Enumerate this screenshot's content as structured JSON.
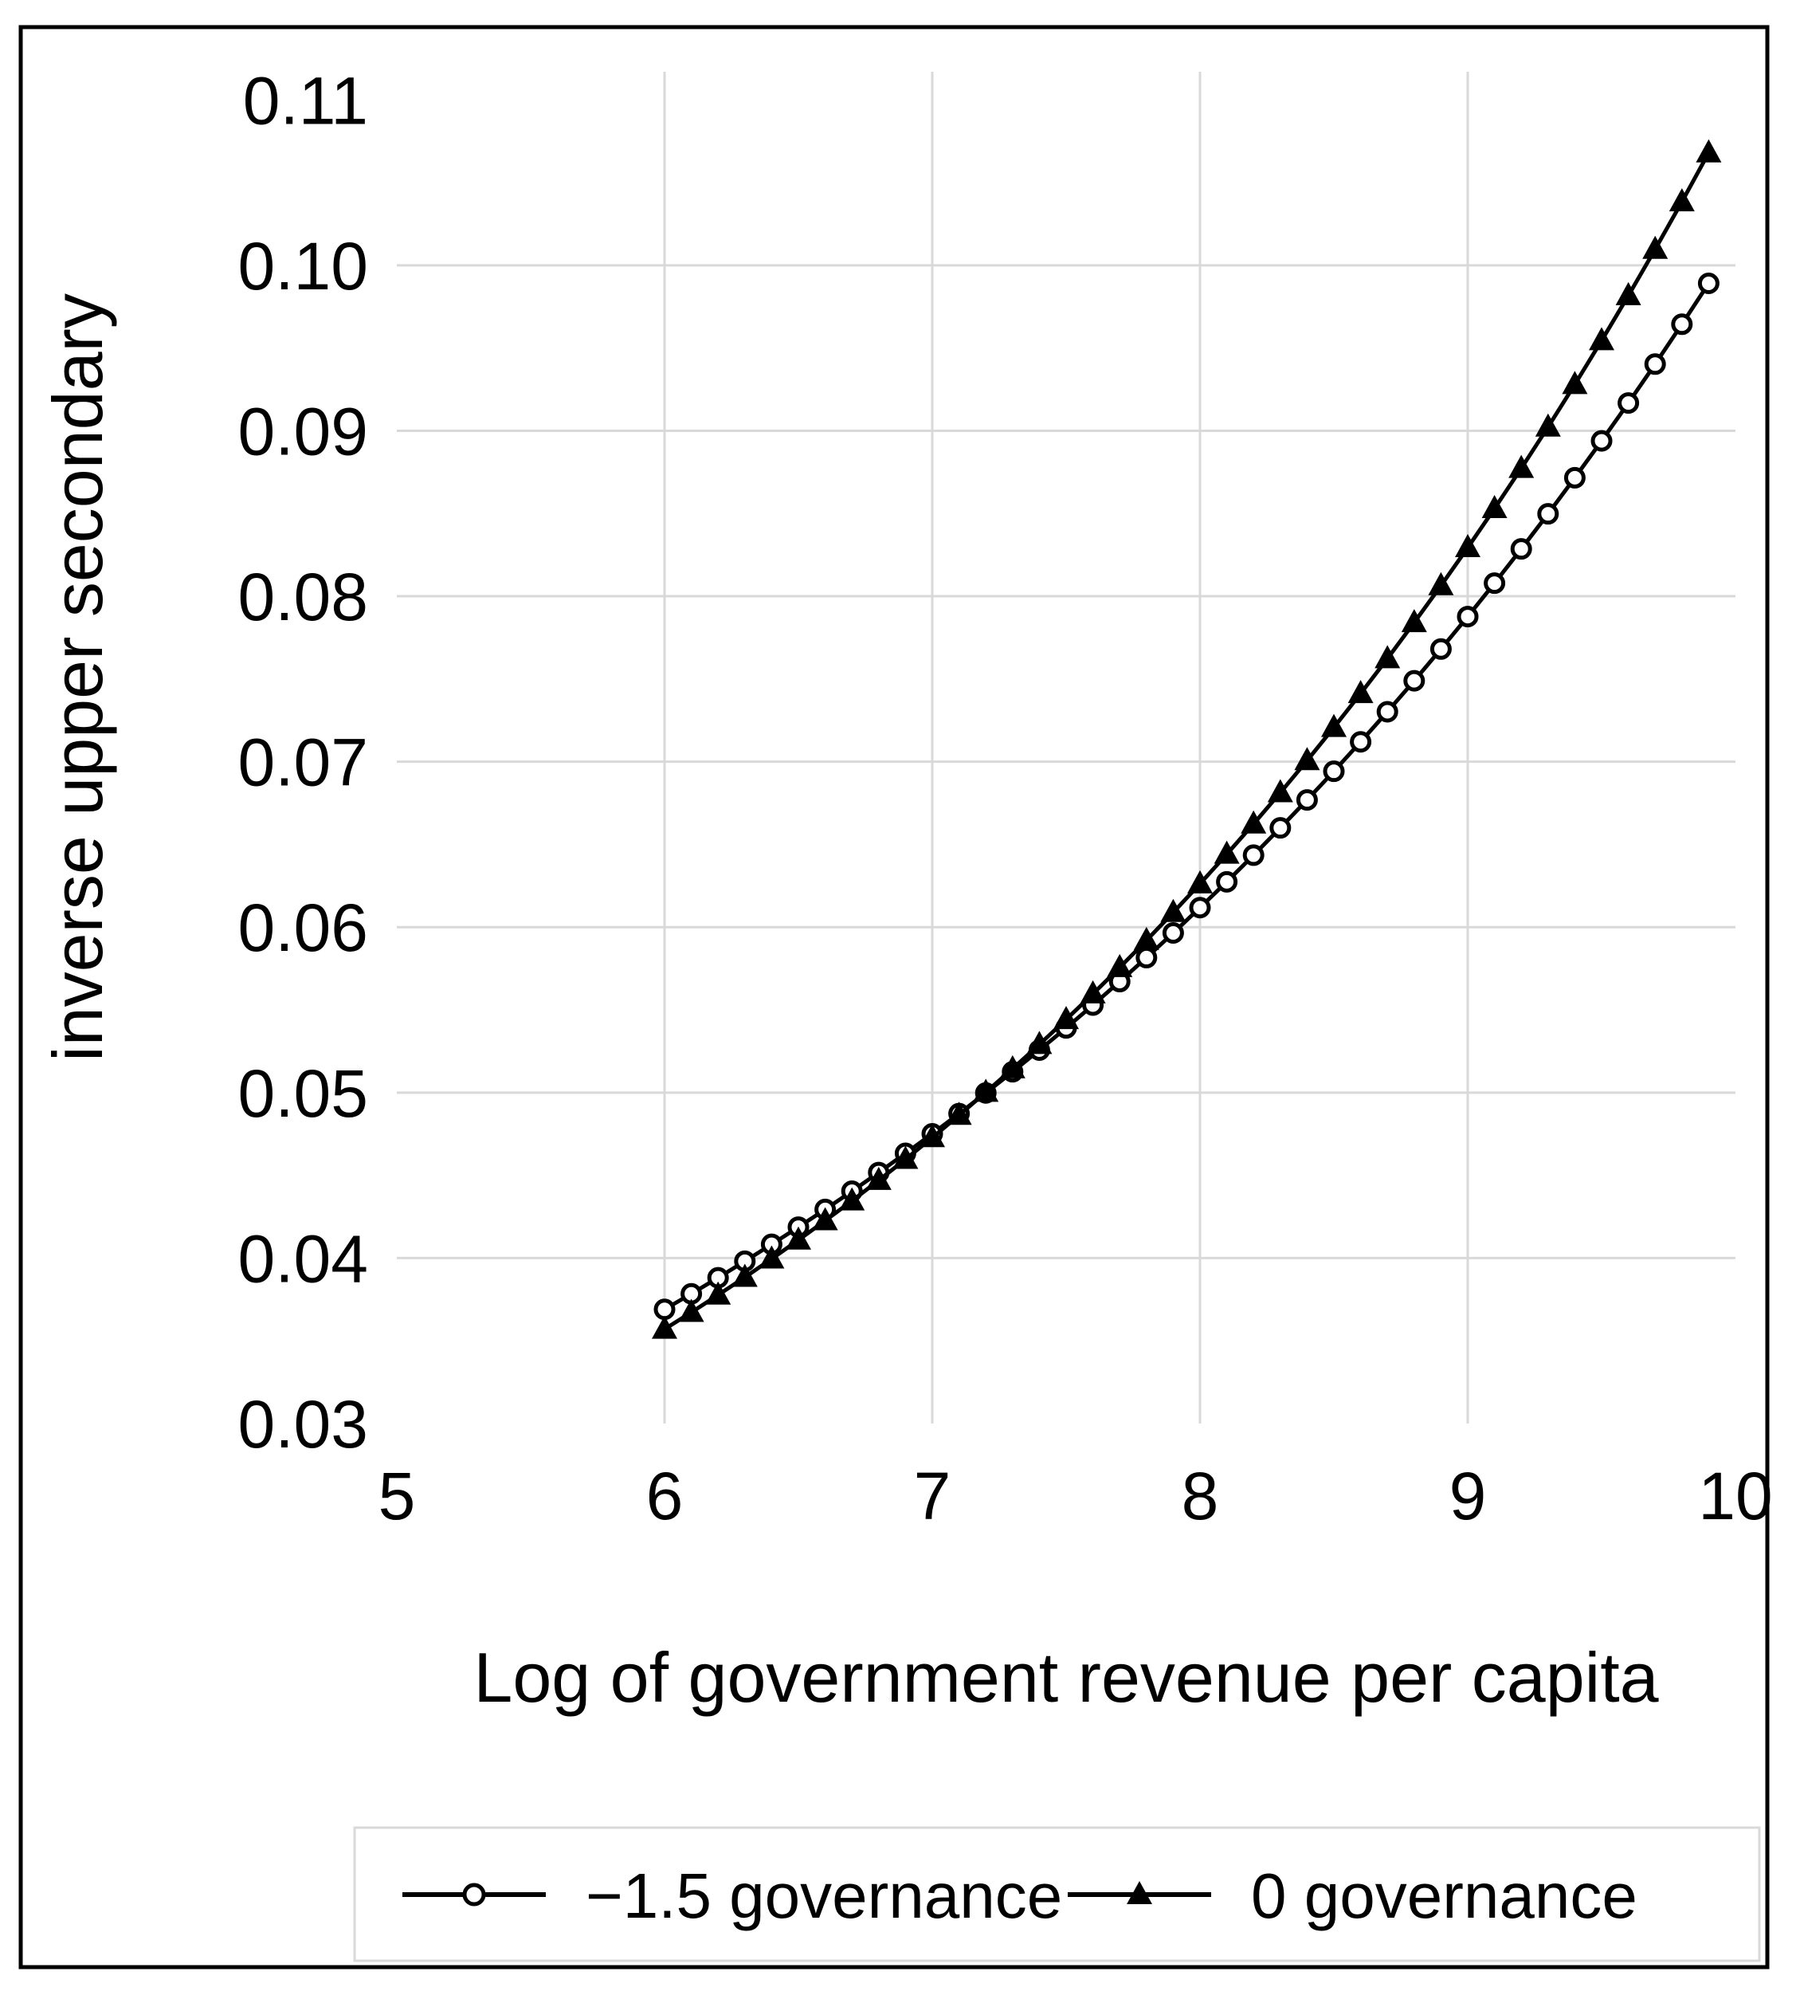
{
  "figure": {
    "background": "#ffffff",
    "frame_color": "#000000"
  },
  "chart_data": {
    "type": "line",
    "title": "",
    "xlabel": "Log of government revenue per capita",
    "ylabel": "inverse upper secondary",
    "xlim": [
      5,
      10
    ],
    "ylim": [
      0.03,
      0.1117
    ],
    "grid": true,
    "legend_position": "bottom",
    "x": [
      6.0,
      6.1,
      6.2,
      6.3,
      6.4,
      6.5,
      6.6,
      6.7,
      6.8,
      6.9,
      7.0,
      7.1,
      7.2,
      7.3,
      7.4,
      7.5,
      7.6,
      7.7,
      7.8,
      7.9,
      8.0,
      8.1,
      8.2,
      8.3,
      8.4,
      8.5,
      8.6,
      8.7,
      8.8,
      8.9,
      9.0,
      9.1,
      9.2,
      9.3,
      9.4,
      9.5,
      9.6,
      9.7,
      9.8,
      9.9
    ],
    "series": [
      {
        "name": "−1.5 governance",
        "marker": "open-circle",
        "color": "#000000",
        "values": [
          0.0369,
          0.03784,
          0.03881,
          0.03981,
          0.04083,
          0.04187,
          0.04294,
          0.04404,
          0.04517,
          0.04633,
          0.04751,
          0.04873,
          0.04998,
          0.05126,
          0.05257,
          0.05391,
          0.05529,
          0.05671,
          0.05816,
          0.05965,
          0.06118,
          0.06274,
          0.06435,
          0.066,
          0.06769,
          0.06942,
          0.0712,
          0.07302,
          0.07489,
          0.07681,
          0.07877,
          0.08079,
          0.08286,
          0.08498,
          0.08716,
          0.08939,
          0.09168,
          0.09403,
          0.09644,
          0.09891
        ]
      },
      {
        "name": "0 governance",
        "marker": "filled-triangle",
        "color": "#000000",
        "values": [
          0.0357,
          0.03672,
          0.03777,
          0.03884,
          0.03995,
          0.04109,
          0.04226,
          0.04346,
          0.0447,
          0.04597,
          0.04728,
          0.04863,
          0.05002,
          0.05144,
          0.05291,
          0.05442,
          0.05597,
          0.05756,
          0.0592,
          0.06089,
          0.06262,
          0.06441,
          0.06624,
          0.06813,
          0.07007,
          0.07207,
          0.07412,
          0.07623,
          0.07841,
          0.08064,
          0.08294,
          0.0853,
          0.08773,
          0.09023,
          0.0928,
          0.09545,
          0.09817,
          0.10097,
          0.10384,
          0.1068
        ]
      }
    ],
    "xticks": [
      {
        "value": 5,
        "label": "5"
      },
      {
        "value": 6,
        "label": "6"
      },
      {
        "value": 7,
        "label": "7"
      },
      {
        "value": 8,
        "label": "8"
      },
      {
        "value": 9,
        "label": "9"
      },
      {
        "value": 10,
        "label": "10"
      }
    ],
    "yticks": [
      {
        "value": 0.11,
        "label": "0.11"
      },
      {
        "value": 0.1,
        "label": "0.10"
      },
      {
        "value": 0.09,
        "label": "0.09"
      },
      {
        "value": 0.08,
        "label": "0.08"
      },
      {
        "value": 0.07,
        "label": "0.07"
      },
      {
        "value": 0.06,
        "label": "0.06"
      },
      {
        "value": 0.05,
        "label": "0.05"
      },
      {
        "value": 0.04,
        "label": "0.04"
      },
      {
        "value": 0.03,
        "label": "0.03"
      }
    ],
    "gridlines": {
      "x_values": [
        6,
        7,
        8,
        9
      ],
      "y_values": [
        0.04,
        0.05,
        0.06,
        0.07,
        0.08,
        0.09,
        0.1
      ]
    }
  },
  "legend": {
    "items": [
      {
        "label": "−1.5 governance",
        "marker": "open-circle"
      },
      {
        "label": "0 governance",
        "marker": "filled-triangle"
      }
    ]
  },
  "colors": {
    "line": "#000000",
    "grid": "#d9d9d9",
    "text": "#000000",
    "legend_border": "#d9d9d9",
    "background": "#ffffff"
  }
}
